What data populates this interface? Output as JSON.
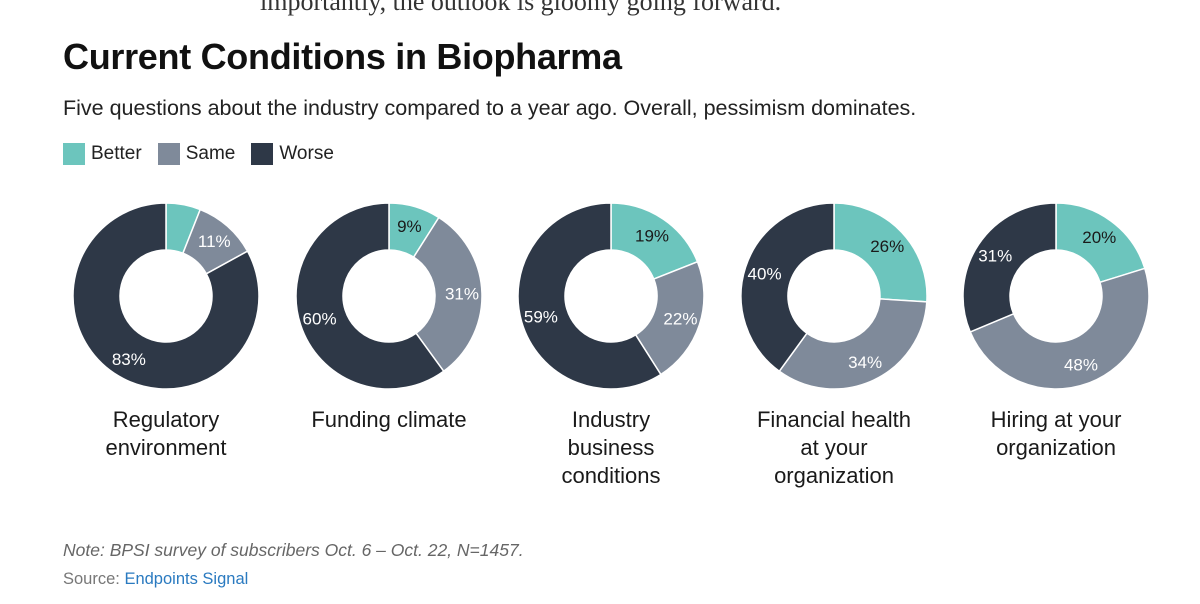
{
  "header": {
    "cut_text": "importantly, the outlook is gloomy going forward.",
    "title": "Current Conditions in Biopharma",
    "subtitle": "Five questions about the industry compared to a year ago. Overall, pessimism dominates."
  },
  "colors": {
    "better": "#6cc5bd",
    "same": "#7f8a9a",
    "worse": "#2e3847"
  },
  "chart_data": {
    "type": "donut",
    "series_names": [
      "Better",
      "Same",
      "Worse"
    ],
    "legend_position": "top-left",
    "charts": [
      {
        "label": [
          "Regulatory",
          "environment"
        ],
        "values": [
          6,
          11,
          83
        ],
        "labels": [
          "",
          "11%",
          "83%"
        ]
      },
      {
        "label": [
          "Funding climate"
        ],
        "values": [
          9,
          31,
          60
        ],
        "labels": [
          "9%",
          "31%",
          "60%"
        ]
      },
      {
        "label": [
          "Industry",
          "business",
          "conditions"
        ],
        "values": [
          19,
          22,
          59
        ],
        "labels": [
          "19%",
          "22%",
          "59%"
        ]
      },
      {
        "label": [
          "Financial health",
          "at your",
          "organization"
        ],
        "values": [
          26,
          34,
          40
        ],
        "labels": [
          "26%",
          "34%",
          "40%"
        ]
      },
      {
        "label": [
          "Hiring at your",
          "organization"
        ],
        "values": [
          20,
          48,
          31
        ],
        "labels": [
          "20%",
          "48%",
          "31%"
        ]
      }
    ]
  },
  "footer": {
    "note": "Note: BPSI survey of subscribers Oct. 6 – Oct. 22, N=1457.",
    "source_prefix": "Source: ",
    "source_link": "Endpoints Signal"
  }
}
